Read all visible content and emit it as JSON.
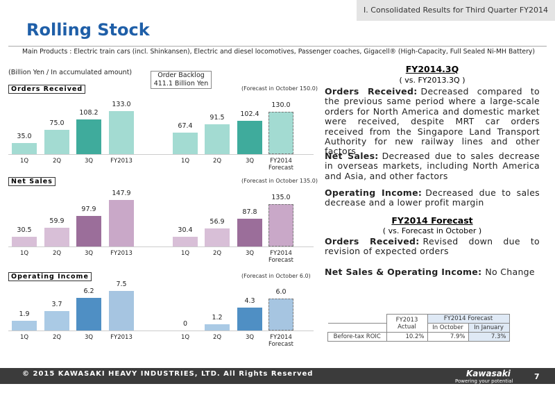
{
  "header": {
    "section": "I. Consolidated Results for Third Quarter FY2014",
    "title": "Rolling Stock",
    "main_products": "Main Products : Electric train cars (incl. Shinkansen), Electric and diesel locomotives, Passenger coaches, Gigacell® (High-Capacity, Full Sealed Ni-MH Battery)"
  },
  "unit_note": "(Billion Yen / In accumulated amount)",
  "backlog": [
    "Order Backlog",
    "411.1 Billion Yen"
  ],
  "chart_data": [
    {
      "type": "bar",
      "title": "Orders Received",
      "annotation": "(Forecast in October 150.0)",
      "categories": [
        "1Q",
        "2Q",
        "3Q",
        "FY2013",
        "1Q",
        "2Q",
        "3Q",
        "FY2014\nForecast"
      ],
      "values": [
        35.0,
        75.0,
        108.2,
        133.0,
        67.4,
        91.5,
        102.4,
        130.0
      ],
      "value_labels": [
        "35.0",
        "75.0",
        "108.2",
        "133.0",
        "67.4",
        "91.5",
        "102.4",
        "130.0"
      ],
      "colors": [
        "#a3dbd2",
        "#a3dbd2",
        "#3fab9c",
        "#a3dbd2",
        "#a3dbd2",
        "#a3dbd2",
        "#3fab9c",
        "#a3dbd2"
      ],
      "dashed": [
        false,
        false,
        false,
        false,
        false,
        false,
        false,
        true
      ]
    },
    {
      "type": "bar",
      "title": "Net Sales",
      "annotation": "(Forecast in October 135.0)",
      "categories": [
        "1Q",
        "2Q",
        "3Q",
        "FY2013",
        "1Q",
        "2Q",
        "3Q",
        "FY2014\nForecast"
      ],
      "values": [
        30.5,
        59.9,
        97.9,
        147.9,
        30.4,
        56.9,
        87.8,
        135.0
      ],
      "value_labels": [
        "30.5",
        "59.9",
        "97.9",
        "147.9",
        "30.4",
        "56.9",
        "87.8",
        "135.0"
      ],
      "colors": [
        "#d8bfd7",
        "#d8bfd7",
        "#9b6e9a",
        "#c9a8c8",
        "#d8bfd7",
        "#d8bfd7",
        "#9b6e9a",
        "#c9a8c8"
      ],
      "dashed": [
        false,
        false,
        false,
        false,
        false,
        false,
        false,
        true
      ]
    },
    {
      "type": "bar",
      "title": "Operating Income",
      "annotation": "(Forecast in October 6.0)",
      "categories": [
        "1Q",
        "2Q",
        "3Q",
        "FY2013",
        "1Q",
        "2Q",
        "3Q",
        "FY2014\nForecast"
      ],
      "values": [
        1.9,
        3.7,
        6.2,
        7.5,
        0,
        1.2,
        4.3,
        6.0
      ],
      "value_labels": [
        "1.9",
        "3.7",
        "6.2",
        "7.5",
        "0",
        "1.2",
        "4.3",
        "6.0"
      ],
      "colors": [
        "#aacae5",
        "#aacae5",
        "#4f8fc4",
        "#a6c5e1",
        "#aacae5",
        "#aacae5",
        "#4f8fc4",
        "#a6c5e1"
      ],
      "dashed": [
        false,
        false,
        false,
        false,
        false,
        false,
        false,
        true
      ]
    }
  ],
  "commentary": [
    {
      "heading": "FY2014.3Q",
      "sub": "( vs. FY2013.3Q )",
      "items": [
        {
          "lead": "Orders Received:",
          "text": "Decreased compared to the previous same period where a large-scale orders for North America and domestic market were received, despite MRT car orders received from the Singapore Land Transport Authority for new railway lines and other factors"
        },
        {
          "lead": "Net Sales:",
          "text": "Decreased due to sales decrease in overseas markets, including North America and Asia, and other factors"
        },
        {
          "lead": "Operating Income:",
          "text": "Decreased due to sales decrease and a lower profit margin"
        }
      ]
    },
    {
      "heading": "FY2014 Forecast",
      "sub": "( vs. Forecast in October )",
      "items": [
        {
          "lead": "Orders Received:",
          "text": "Revised down due to revision of expected orders"
        },
        {
          "lead": "Net Sales & Operating Income:",
          "text": "No Change"
        }
      ]
    }
  ],
  "table": {
    "headers": [
      "FY2013 Actual",
      "FY2014 Forecast",
      "In October",
      "In January"
    ],
    "row": [
      "Before-tax ROIC",
      "10.2%",
      "7.9%",
      "7.3%"
    ]
  },
  "footer": {
    "copyright": "© 2015 KAWASAKI HEAVY INDUSTRIES, LTD. All Rights Reserved",
    "logo": "Kawasaki",
    "tagline": "Powering your potential",
    "page": "7"
  }
}
